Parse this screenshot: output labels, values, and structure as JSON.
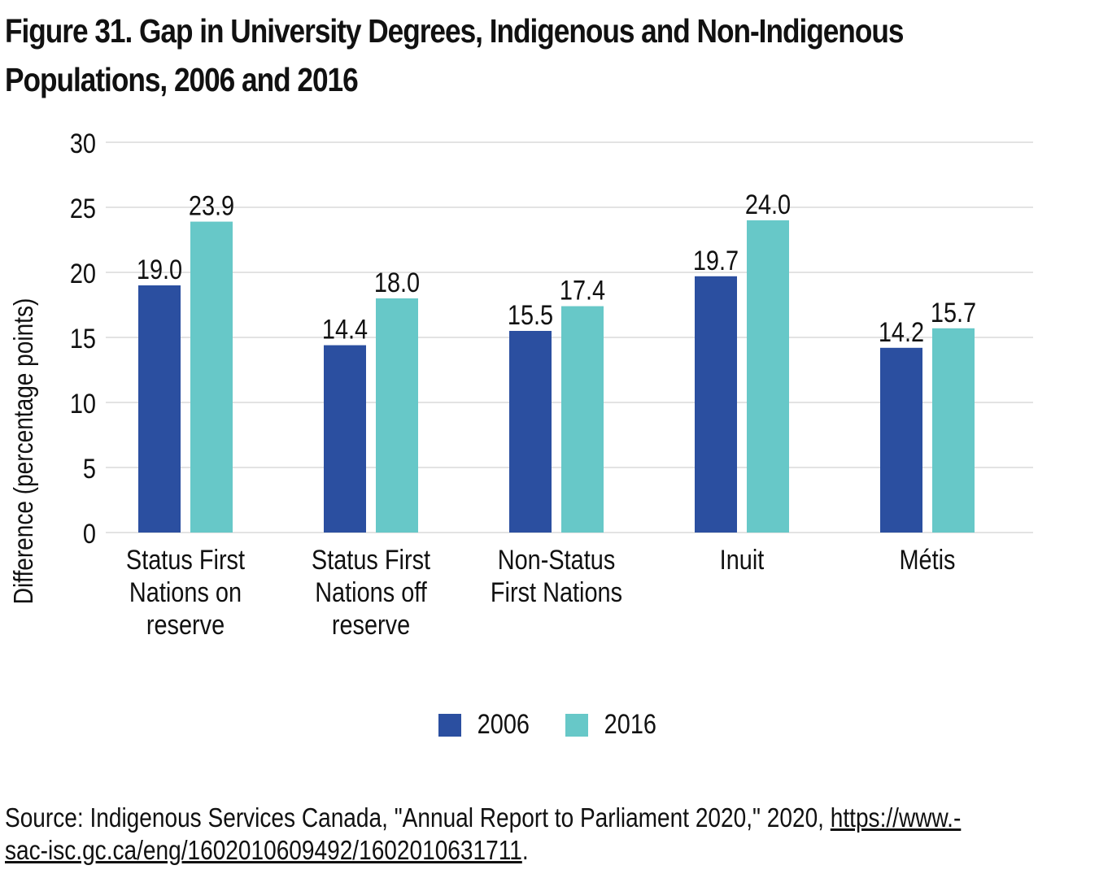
{
  "title": {
    "line1": "Figure 31. Gap in University Degrees, Indigenous and Non-Indigenous",
    "line2": "Populations, 2006 and 2016"
  },
  "colors": {
    "s2006": "#2b4fa0",
    "s2016": "#67c8c8",
    "grid": "#e3e3e3"
  },
  "chart_data": {
    "type": "bar",
    "title": "Figure 31. Gap in University Degrees, Indigenous and Non-Indigenous Populations, 2006 and 2016",
    "xlabel": "",
    "ylabel": "Difference (percentage points)",
    "ylim": [
      0,
      30
    ],
    "yticks": [
      0,
      5,
      10,
      15,
      20,
      25,
      30
    ],
    "grid": true,
    "legend_position": "bottom-center",
    "categories": [
      [
        "Status First",
        "Nations on",
        "reserve"
      ],
      [
        "Status First",
        "Nations off",
        "reserve"
      ],
      [
        "Non-Status",
        "First Nations"
      ],
      [
        "Inuit"
      ],
      [
        "Métis"
      ]
    ],
    "series": [
      {
        "name": "2006",
        "values": [
          19.0,
          14.4,
          15.5,
          19.7,
          14.2
        ],
        "labels": [
          "19.0",
          "14.4",
          "15.5",
          "19.7",
          "14.2"
        ]
      },
      {
        "name": "2016",
        "values": [
          23.9,
          18.0,
          17.4,
          24.0,
          15.7
        ],
        "labels": [
          "23.9",
          "18.0",
          "17.4",
          "24.0",
          "15.7"
        ]
      }
    ]
  },
  "legend": [
    {
      "label": "2006"
    },
    {
      "label": "2016"
    }
  ],
  "source": {
    "text": "Source: Indigenous Services Canada, \"Annual Report to Parliament 2020,\" 2020, ",
    "link_line1": "https://www.-",
    "link_line2": "sac-isc.gc.ca/eng/1602010609492/1602010631711",
    "end": "."
  }
}
